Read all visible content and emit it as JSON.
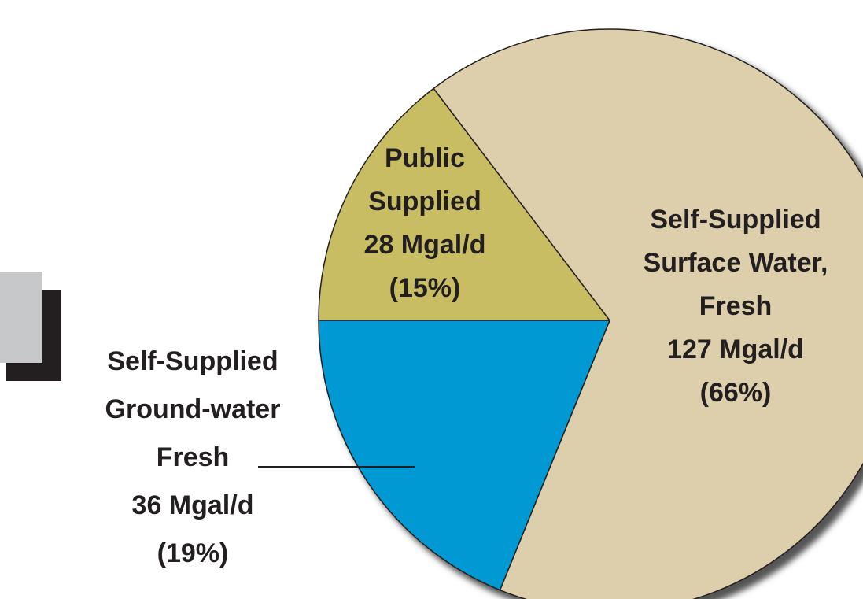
{
  "chart_data": {
    "type": "pie",
    "categories": [
      "Public\nSupplied",
      "Self-Supplied\nSurface Water,\nFresh",
      "Self-Supplied\nGround-water\nFresh"
    ],
    "values": [
      28,
      127,
      36
    ],
    "value_labels": [
      "28 Mgal/d",
      "127 Mgal/d",
      "36 Mgal/d"
    ],
    "percent_labels": [
      "(15%)",
      "(66%)",
      "(19%)"
    ],
    "colors": [
      "#c8bd63",
      "#ddcfab",
      "#0099d4"
    ]
  }
}
